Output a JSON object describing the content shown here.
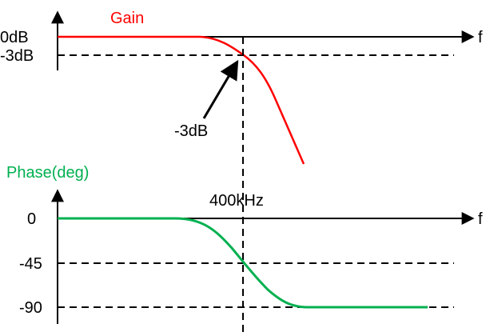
{
  "gain_plot": {
    "title": "Gain",
    "title_color": "#ff0000",
    "y_ticks": [
      "0dB",
      "-3dB"
    ],
    "x_axis_label": "f",
    "annotation": "-3dB",
    "curve_color": "#ff0000"
  },
  "phase_plot": {
    "title": "Phase(deg)",
    "title_color": "#00b050",
    "y_ticks": [
      "0",
      "-45",
      "-90"
    ],
    "x_axis_label": "f",
    "curve_color": "#00b050"
  },
  "cutoff_label": "400kHz"
}
